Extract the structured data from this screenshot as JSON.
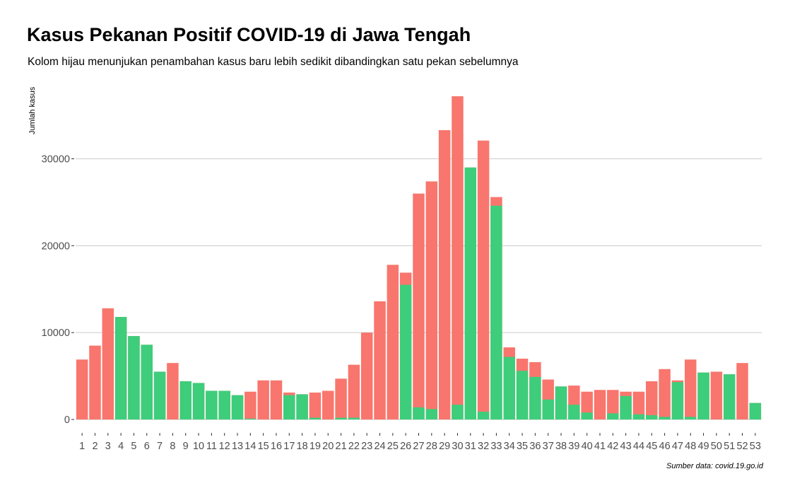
{
  "chart_data": {
    "type": "bar",
    "title": "Kasus Pekanan Positif COVID-19 di Jawa Tengah",
    "subtitle": "Kolom hijau menunjukan penambahan kasus baru lebih sedikit dibandingkan satu pekan sebelumnya",
    "xlabel": "",
    "ylabel": "Jumlah kasus",
    "caption": "Sumber data: covid.19.go.id",
    "ylim": [
      0,
      38000
    ],
    "y_ticks": [
      0,
      10000,
      20000,
      30000
    ],
    "grid": true,
    "legend": "none",
    "colors": {
      "increase": "#f8766d",
      "decrease": "#3ecd7b",
      "grid": "#cccccc",
      "axis_text": "#4d4d4d"
    },
    "categories": [
      "1",
      "2",
      "3",
      "4",
      "5",
      "6",
      "7",
      "8",
      "9",
      "10",
      "11",
      "12",
      "13",
      "14",
      "15",
      "16",
      "17",
      "18",
      "19",
      "20",
      "21",
      "22",
      "23",
      "24",
      "25",
      "26",
      "27",
      "28",
      "29",
      "30",
      "31",
      "32",
      "33",
      "34",
      "35",
      "36",
      "37",
      "38",
      "39",
      "40",
      "41",
      "42",
      "43",
      "44",
      "45",
      "46",
      "47",
      "48",
      "49",
      "50",
      "51",
      "52",
      "53"
    ],
    "series": [
      {
        "values": [
          6900,
          8500,
          12800,
          11800,
          9600,
          8600,
          5500,
          6500,
          4400,
          4200,
          3300,
          3300,
          2800,
          3200,
          4500,
          4500,
          3100,
          2900,
          3100,
          3300,
          4700,
          6300,
          10000,
          13600,
          17800,
          16900,
          26000,
          27400,
          33300,
          37200,
          29000,
          32100,
          25600,
          8300,
          7000,
          6600,
          4600,
          3800,
          3900,
          3200,
          3400,
          3400,
          3200,
          3200,
          4400,
          5800,
          4500,
          6900,
          5400,
          5500,
          5200,
          6500,
          1900
        ]
      },
      {
        "values": [
          null,
          null,
          null,
          11800,
          9600,
          8600,
          5500,
          null,
          4400,
          4200,
          3300,
          3300,
          2800,
          100,
          null,
          null,
          2800,
          2900,
          200,
          null,
          200,
          200,
          null,
          null,
          null,
          15500,
          1400,
          1200,
          null,
          1700,
          29000,
          900,
          24600,
          7200,
          5600,
          4900,
          2300,
          3800,
          1700,
          800,
          null,
          700,
          2700,
          600,
          500,
          300,
          4300,
          300,
          5400,
          null,
          5200,
          null,
          1900
        ]
      }
    ]
  }
}
